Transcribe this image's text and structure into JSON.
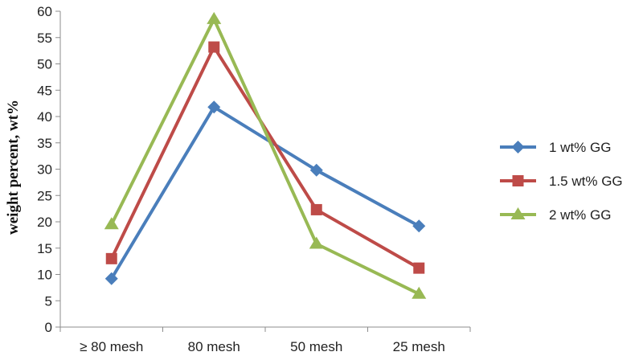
{
  "chart_data": {
    "type": "line",
    "title": "",
    "xlabel": "",
    "ylabel": "weight percent, wt%",
    "categories": [
      "≥ 80 mesh",
      "80 mesh",
      "50 mesh",
      "25 mesh"
    ],
    "ylim": [
      0,
      60
    ],
    "yticks": [
      0,
      5,
      10,
      15,
      20,
      25,
      30,
      35,
      40,
      45,
      50,
      55,
      60
    ],
    "grid": false,
    "legend": "right",
    "series": [
      {
        "name": "1 wt% GG",
        "values": [
          9.2,
          41.8,
          29.8,
          19.2
        ],
        "color": "#4a7ebb",
        "marker": "diamond"
      },
      {
        "name": "1.5 wt% GG",
        "values": [
          13.0,
          53.2,
          22.3,
          11.2
        ],
        "color": "#be4b48",
        "marker": "square"
      },
      {
        "name": "2 wt% GG",
        "values": [
          19.5,
          58.5,
          15.8,
          6.3
        ],
        "color": "#98b954",
        "marker": "triangle"
      }
    ]
  }
}
